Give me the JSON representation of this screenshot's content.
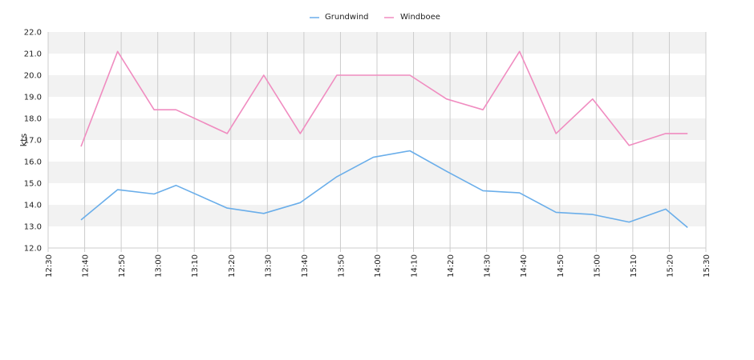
{
  "chart_data": {
    "type": "line",
    "title": "",
    "xlabel": "",
    "ylabel": "kts",
    "ylim": [
      12.0,
      22.0
    ],
    "y_ticks": [
      "12.0",
      "13.0",
      "14.0",
      "15.0",
      "16.0",
      "17.0",
      "18.0",
      "19.0",
      "20.0",
      "21.0",
      "22.0"
    ],
    "x_ticks": [
      "12:30",
      "12:40",
      "12:50",
      "13:00",
      "13:10",
      "13:20",
      "13:30",
      "13:40",
      "13:50",
      "14:00",
      "14:10",
      "14:20",
      "14:30",
      "14:40",
      "14:50",
      "15:00",
      "15:10",
      "15:20",
      "15:30"
    ],
    "xlim": [
      "12:30",
      "15:30"
    ],
    "grid": true,
    "legend": "top-center",
    "series": [
      {
        "name": "Grundwind",
        "color": "#6aaeea",
        "points": [
          {
            "x": "12:39",
            "y": 13.3
          },
          {
            "x": "12:49",
            "y": 14.7
          },
          {
            "x": "12:59",
            "y": 14.5
          },
          {
            "x": "13:05",
            "y": 14.9
          },
          {
            "x": "13:19",
            "y": 13.85
          },
          {
            "x": "13:29",
            "y": 13.6
          },
          {
            "x": "13:39",
            "y": 14.1
          },
          {
            "x": "13:49",
            "y": 15.3
          },
          {
            "x": "13:59",
            "y": 16.2
          },
          {
            "x": "14:09",
            "y": 16.5
          },
          {
            "x": "14:19",
            "y": 15.55
          },
          {
            "x": "14:29",
            "y": 14.65
          },
          {
            "x": "14:39",
            "y": 14.55
          },
          {
            "x": "14:49",
            "y": 13.65
          },
          {
            "x": "14:59",
            "y": 13.55
          },
          {
            "x": "15:09",
            "y": 13.2
          },
          {
            "x": "15:19",
            "y": 13.8
          },
          {
            "x": "15:25",
            "y": 12.95
          }
        ]
      },
      {
        "name": "Windboee",
        "color": "#f08cc0",
        "points": [
          {
            "x": "12:39",
            "y": 16.7
          },
          {
            "x": "12:49",
            "y": 21.1
          },
          {
            "x": "12:59",
            "y": 18.4
          },
          {
            "x": "13:05",
            "y": 18.4
          },
          {
            "x": "13:19",
            "y": 17.3
          },
          {
            "x": "13:29",
            "y": 20.0
          },
          {
            "x": "13:39",
            "y": 17.3
          },
          {
            "x": "13:49",
            "y": 20.0
          },
          {
            "x": "13:59",
            "y": 20.0
          },
          {
            "x": "14:09",
            "y": 20.0
          },
          {
            "x": "14:19",
            "y": 18.9
          },
          {
            "x": "14:29",
            "y": 18.4
          },
          {
            "x": "14:39",
            "y": 21.1
          },
          {
            "x": "14:49",
            "y": 17.3
          },
          {
            "x": "14:59",
            "y": 18.9
          },
          {
            "x": "15:09",
            "y": 16.75
          },
          {
            "x": "15:19",
            "y": 17.3
          },
          {
            "x": "15:25",
            "y": 17.3
          }
        ]
      }
    ]
  }
}
